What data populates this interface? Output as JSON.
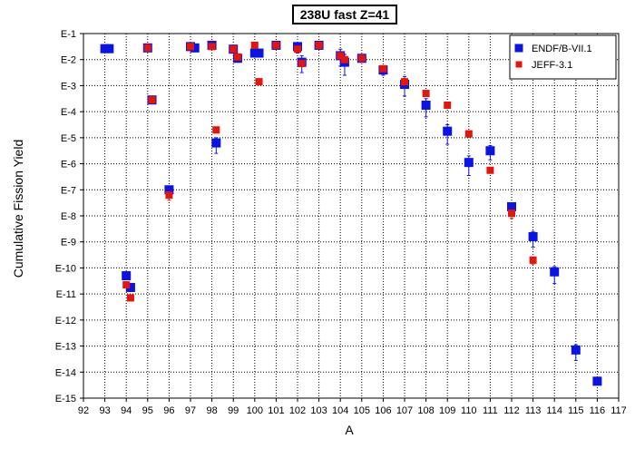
{
  "chart_data": {
    "type": "scatter",
    "title": "238U fast Z=41",
    "xlabel": "A",
    "ylabel": "Cumulative Fission Yield",
    "xlim": [
      92,
      117
    ],
    "ylim_exponent": [
      -15,
      -1
    ],
    "y_scale": "log",
    "grid": true,
    "legend_position": "top-right",
    "x_ticks": [
      92,
      93,
      94,
      95,
      96,
      97,
      98,
      99,
      100,
      101,
      102,
      103,
      104,
      105,
      106,
      107,
      108,
      109,
      110,
      111,
      112,
      113,
      114,
      115,
      116,
      117
    ],
    "y_ticks": [
      {
        "exp": -1,
        "label": "E-1"
      },
      {
        "exp": -2,
        "label": "E-2"
      },
      {
        "exp": -3,
        "label": "E-3"
      },
      {
        "exp": -4,
        "label": "E-4"
      },
      {
        "exp": -5,
        "label": "E-5"
      },
      {
        "exp": -6,
        "label": "E-6"
      },
      {
        "exp": -7,
        "label": "E-7"
      },
      {
        "exp": -8,
        "label": "E-8"
      },
      {
        "exp": -9,
        "label": "E-9"
      },
      {
        "exp": -10,
        "label": "E-10"
      },
      {
        "exp": -11,
        "label": "E-11"
      },
      {
        "exp": -12,
        "label": "E-12"
      },
      {
        "exp": -13,
        "label": "E-13"
      },
      {
        "exp": -14,
        "label": "E-14"
      },
      {
        "exp": -15,
        "label": "E-15"
      }
    ],
    "series": [
      {
        "name": "ENDF/B-VII.1",
        "color": "#0a14e6",
        "marker": "square",
        "points": [
          {
            "x": 93.0,
            "log10y": -1.58,
            "err": [
              0,
              0
            ]
          },
          {
            "x": 93.2,
            "log10y": -1.58,
            "err": [
              0,
              0
            ]
          },
          {
            "x": 95.0,
            "log10y": -1.55,
            "err": [
              0,
              0
            ]
          },
          {
            "x": 95.2,
            "log10y": -3.55,
            "err": [
              0,
              0
            ]
          },
          {
            "x": 94.0,
            "log10y": -10.3,
            "err": [
              0.1,
              0.1
            ]
          },
          {
            "x": 94.2,
            "log10y": -10.75,
            "err": [
              0.15,
              0.15
            ]
          },
          {
            "x": 96.0,
            "log10y": -7.0,
            "err": [
              0.1,
              0.15
            ]
          },
          {
            "x": 97.0,
            "log10y": -1.5,
            "err": [
              0,
              0
            ]
          },
          {
            "x": 97.2,
            "log10y": -1.55,
            "err": [
              0,
              0
            ]
          },
          {
            "x": 98.0,
            "log10y": -1.45,
            "err": [
              0,
              0
            ]
          },
          {
            "x": 98.2,
            "log10y": -5.2,
            "err": [
              0.2,
              0.4
            ]
          },
          {
            "x": 99.0,
            "log10y": -1.6,
            "err": [
              0,
              0
            ]
          },
          {
            "x": 99.2,
            "log10y": -1.95,
            "err": [
              0.1,
              0.1
            ]
          },
          {
            "x": 100.0,
            "log10y": -1.75,
            "err": [
              0,
              0
            ]
          },
          {
            "x": 100.2,
            "log10y": -1.75,
            "err": [
              0,
              0
            ]
          },
          {
            "x": 101.0,
            "log10y": -1.45,
            "err": [
              0,
              0
            ]
          },
          {
            "x": 102.0,
            "log10y": -1.5,
            "err": [
              0.15,
              0.25
            ]
          },
          {
            "x": 102.2,
            "log10y": -2.1,
            "err": [
              0.25,
              0.4
            ]
          },
          {
            "x": 103.0,
            "log10y": -1.45,
            "err": [
              0,
              0
            ]
          },
          {
            "x": 104.0,
            "log10y": -1.85,
            "err": [
              0.25,
              0.4
            ]
          },
          {
            "x": 104.2,
            "log10y": -2.1,
            "err": [
              0.3,
              0.5
            ]
          },
          {
            "x": 105.0,
            "log10y": -1.95,
            "err": [
              0,
              0
            ]
          },
          {
            "x": 106.0,
            "log10y": -2.4,
            "err": [
              0.15,
              0.2
            ]
          },
          {
            "x": 107.0,
            "log10y": -2.95,
            "err": [
              0.3,
              0.45
            ]
          },
          {
            "x": 108.0,
            "log10y": -3.75,
            "err": [
              0.25,
              0.45
            ]
          },
          {
            "x": 109.0,
            "log10y": -4.75,
            "err": [
              0.25,
              0.5
            ]
          },
          {
            "x": 110.0,
            "log10y": -5.95,
            "err": [
              0.25,
              0.5
            ]
          },
          {
            "x": 111.0,
            "log10y": -5.5,
            "err": [
              0.2,
              0.35
            ]
          },
          {
            "x": 112.0,
            "log10y": -7.65,
            "err": [
              0.1,
              0.25
            ]
          },
          {
            "x": 113.0,
            "log10y": -8.8,
            "err": [
              0.2,
              0.4
            ]
          },
          {
            "x": 114.0,
            "log10y": -10.15,
            "err": [
              0.2,
              0.45
            ]
          },
          {
            "x": 115.0,
            "log10y": -13.15,
            "err": [
              0.2,
              0.4
            ]
          },
          {
            "x": 116.0,
            "log10y": -14.35,
            "err": [
              0.1,
              0.1
            ]
          }
        ]
      },
      {
        "name": "JEFF-3.1",
        "color": "#e6140a",
        "marker": "square",
        "points": [
          {
            "x": 95.0,
            "log10y": -1.55,
            "err": [
              0,
              0
            ]
          },
          {
            "x": 95.2,
            "log10y": -3.55,
            "err": [
              0,
              0
            ]
          },
          {
            "x": 94.0,
            "log10y": -10.65,
            "err": [
              0,
              0
            ]
          },
          {
            "x": 94.2,
            "log10y": -11.15,
            "err": [
              0.1,
              0.1
            ]
          },
          {
            "x": 96.0,
            "log10y": -7.2,
            "err": [
              0.1,
              0.2
            ]
          },
          {
            "x": 97.0,
            "log10y": -1.5,
            "err": [
              0,
              0
            ]
          },
          {
            "x": 98.0,
            "log10y": -1.5,
            "err": [
              0,
              0
            ]
          },
          {
            "x": 98.2,
            "log10y": -4.7,
            "err": [
              0,
              0
            ]
          },
          {
            "x": 99.0,
            "log10y": -1.6,
            "err": [
              0,
              0
            ]
          },
          {
            "x": 99.2,
            "log10y": -1.9,
            "err": [
              0,
              0
            ]
          },
          {
            "x": 100.0,
            "log10y": -1.45,
            "err": [
              0,
              0
            ]
          },
          {
            "x": 100.2,
            "log10y": -2.85,
            "err": [
              0,
              0
            ]
          },
          {
            "x": 101.0,
            "log10y": -1.45,
            "err": [
              0,
              0
            ]
          },
          {
            "x": 102.0,
            "log10y": -1.6,
            "err": [
              0,
              0
            ]
          },
          {
            "x": 102.2,
            "log10y": -2.15,
            "err": [
              0,
              0
            ]
          },
          {
            "x": 103.0,
            "log10y": -1.45,
            "err": [
              0,
              0
            ]
          },
          {
            "x": 104.0,
            "log10y": -1.85,
            "err": [
              0,
              0
            ]
          },
          {
            "x": 104.2,
            "log10y": -2.0,
            "err": [
              0,
              0
            ]
          },
          {
            "x": 105.0,
            "log10y": -1.95,
            "err": [
              0,
              0
            ]
          },
          {
            "x": 106.0,
            "log10y": -2.35,
            "err": [
              0,
              0
            ]
          },
          {
            "x": 107.0,
            "log10y": -2.85,
            "err": [
              0,
              0
            ]
          },
          {
            "x": 108.0,
            "log10y": -3.3,
            "err": [
              0.1,
              0.1
            ]
          },
          {
            "x": 109.0,
            "log10y": -3.75,
            "err": [
              0,
              0
            ]
          },
          {
            "x": 110.0,
            "log10y": -4.85,
            "err": [
              0.1,
              0.1
            ]
          },
          {
            "x": 111.0,
            "log10y": -6.25,
            "err": [
              0.1,
              0.1
            ]
          },
          {
            "x": 112.0,
            "log10y": -7.9,
            "err": [
              0.1,
              0.2
            ]
          },
          {
            "x": 113.0,
            "log10y": -9.7,
            "err": [
              0.1,
              0.15
            ]
          }
        ]
      }
    ]
  }
}
